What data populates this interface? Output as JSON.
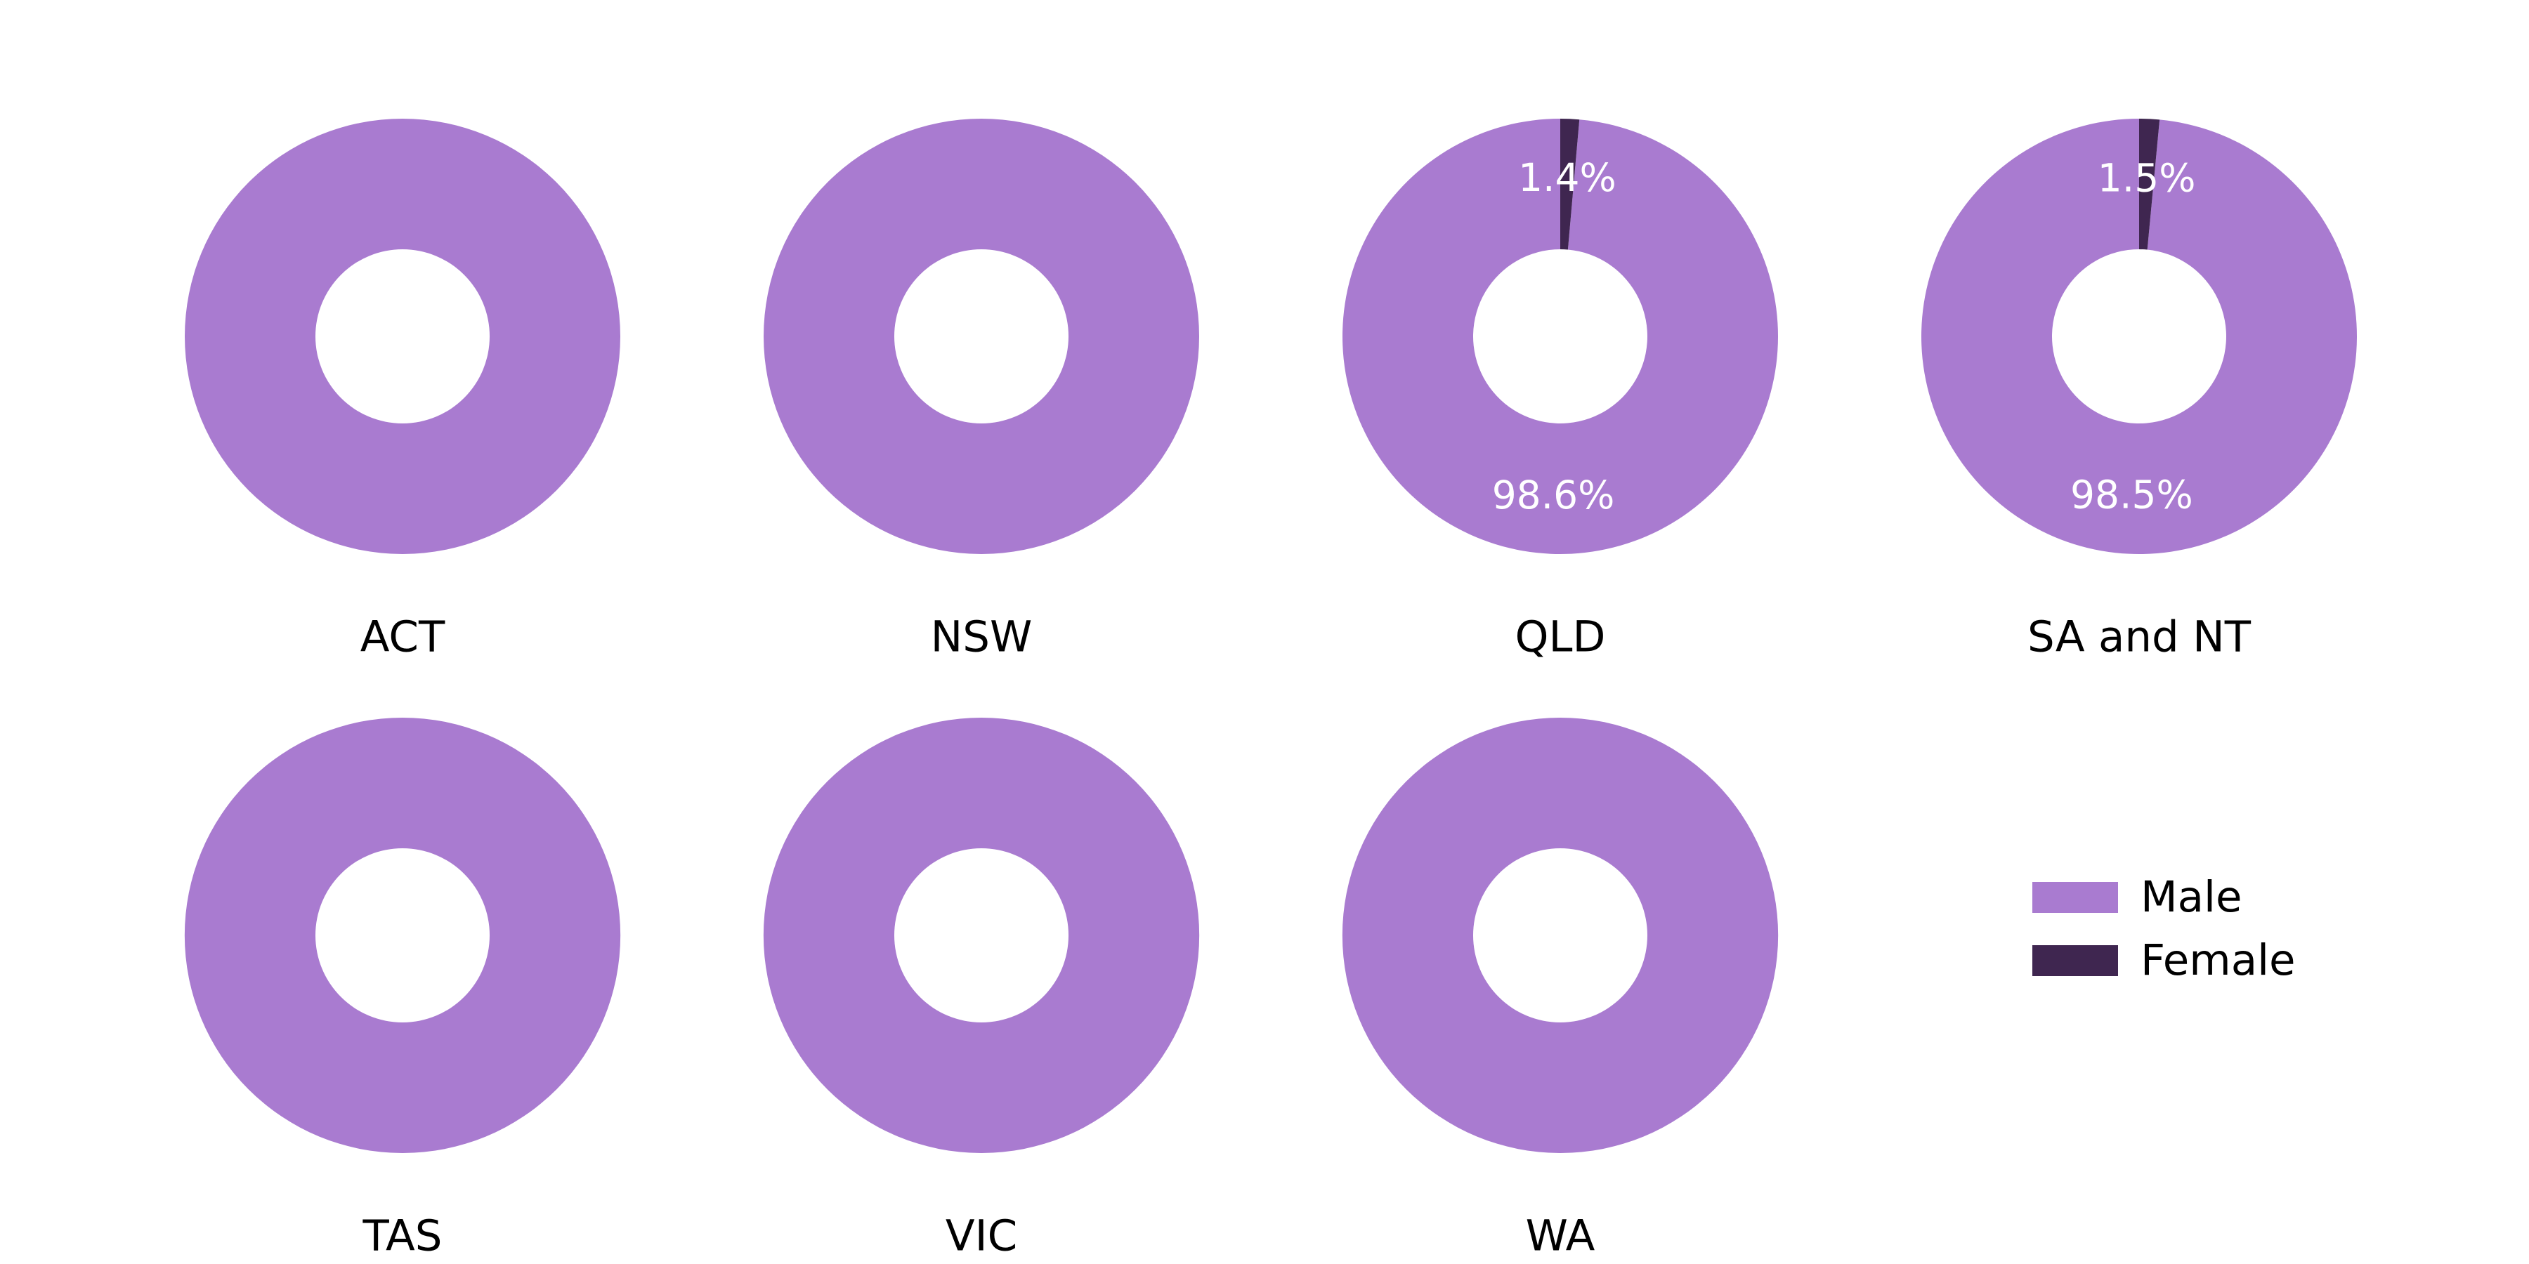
{
  "chart_data": {
    "type": "pie",
    "variant": "donut",
    "legend_placement": "bottom-right",
    "series": [
      {
        "name": "Male",
        "color": "#a97bd0"
      },
      {
        "name": "Female",
        "color": "#3f2650"
      }
    ],
    "panels": [
      {
        "title": "ACT",
        "values": [
          100,
          0
        ],
        "labels": [
          "",
          ""
        ]
      },
      {
        "title": "NSW",
        "values": [
          100,
          0
        ],
        "labels": [
          "",
          ""
        ]
      },
      {
        "title": "QLD",
        "values": [
          98.6,
          1.4
        ],
        "labels": [
          "98.6%",
          "1.4%"
        ]
      },
      {
        "title": "SA and NT",
        "values": [
          98.5,
          1.5
        ],
        "labels": [
          "98.5%",
          "1.5%"
        ]
      },
      {
        "title": "TAS",
        "values": [
          100,
          0
        ],
        "labels": [
          "",
          ""
        ]
      },
      {
        "title": "VIC",
        "values": [
          100,
          0
        ],
        "labels": [
          "",
          ""
        ]
      },
      {
        "title": "WA",
        "values": [
          100,
          0
        ],
        "labels": [
          "",
          ""
        ]
      }
    ]
  },
  "legend": {
    "items": [
      {
        "label": "Male",
        "color": "#a97bd0"
      },
      {
        "label": "Female",
        "color": "#3f2650"
      }
    ]
  }
}
